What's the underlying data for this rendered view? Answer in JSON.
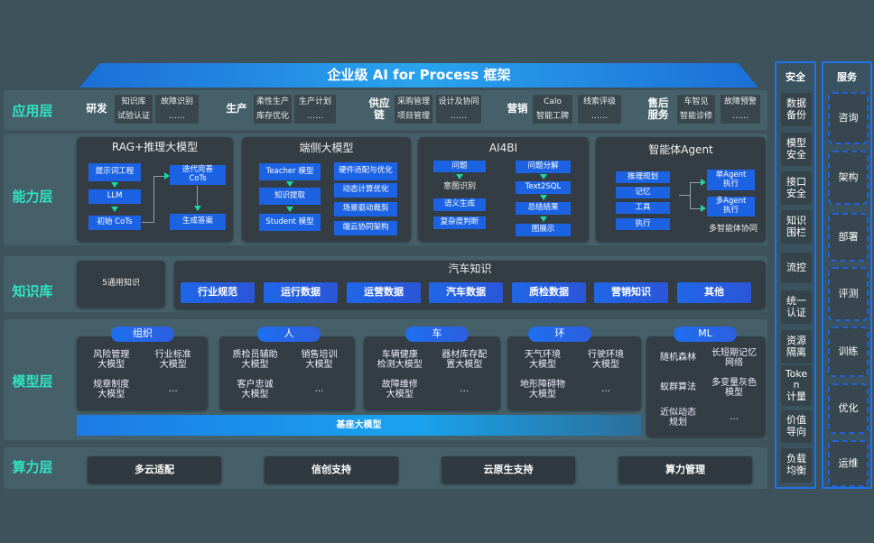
{
  "title": "企业级 AI for Process 框架",
  "layers": {
    "app": "应用层",
    "capability": "能力层",
    "knowledge": "知识库",
    "model": "模型层",
    "compute": "算力层"
  },
  "app": {
    "groups": [
      {
        "name": "研发",
        "items": [
          "知识库",
          "试验认证",
          "故障识别",
          "……"
        ]
      },
      {
        "name": "生产",
        "items": [
          "柔性生产",
          "库存优化",
          "生产计划",
          "……"
        ]
      },
      {
        "name": "供应链",
        "items": [
          "采购管理",
          "项目管理",
          "设计及协同",
          "……"
        ]
      },
      {
        "name": "营销",
        "items": [
          "Calo",
          "智能工牌",
          "线索评级",
          "……"
        ]
      },
      {
        "name": "售后服务",
        "items": [
          "车智见",
          "智能诊修",
          "故障预警",
          "……"
        ]
      }
    ]
  },
  "capability": {
    "rag": {
      "title": "RAG+推理大模型",
      "items": [
        "提示词工程",
        "LLM",
        "初始 CoTs",
        "迭代完善\nCoTs",
        "生成答案"
      ]
    },
    "edge": {
      "title": "端侧大模型",
      "items": [
        "Teacher 模型",
        "知识提取",
        "Student 模型",
        "硬件适配与优化",
        "动态计算优化",
        "场景驱动裁剪",
        "端云协同架构"
      ]
    },
    "ai4bi": {
      "title": "AI4BI",
      "items": [
        "问题",
        "意图识别",
        "语义生成",
        "复杂度判断",
        "问题分解",
        "Text2SQL",
        "总结结果",
        "图展示"
      ]
    },
    "agent": {
      "title": "智能体Agent",
      "items": [
        "推理规划",
        "记忆",
        "工具",
        "执行",
        "单Agent\n执行",
        "多Agent\n执行"
      ],
      "caption": "多智能体协同"
    }
  },
  "knowledge": {
    "general": "5通用知识",
    "auto_title": "汽车知识",
    "items": [
      "行业规范",
      "运行数据",
      "运营数据",
      "汽车数据",
      "质检数据",
      "营销知识",
      "其他"
    ]
  },
  "model": {
    "groups": [
      {
        "name": "组织",
        "items": [
          "风险管理\n大模型",
          "行业标准\n大模型",
          "规章制度\n大模型",
          "…"
        ]
      },
      {
        "name": "人",
        "items": [
          "质检员辅助\n大模型",
          "销售培训\n大模型",
          "客户忠诚\n大模型",
          "…"
        ]
      },
      {
        "name": "车",
        "items": [
          "车辆健康\n检测大模型",
          "器材库存配\n置大模型",
          "故障维修\n大模型",
          "…"
        ]
      },
      {
        "name": "环",
        "items": [
          "天气环境\n大模型",
          "行驶环境\n大模型",
          "地形障碍物\n大模型",
          "…"
        ]
      },
      {
        "name": "ML",
        "items": [
          "随机森林",
          "长短期记忆\n网络",
          "蚁群算法",
          "多变量灰色\n模型",
          "近似动态\n规划",
          "…"
        ]
      }
    ],
    "base": "基座大模型"
  },
  "compute": {
    "items": [
      "多云适配",
      "信创支持",
      "云原生支持",
      "算力管理"
    ]
  },
  "security": {
    "title": "安全",
    "items": [
      "数据\n备份",
      "模型\n安全",
      "接口\n安全",
      "知识\n围栏",
      "流控",
      "统一\n认证",
      "资源\n隔离",
      "Toke\nn\n计量",
      "价值\n导向",
      "负载\n均衡"
    ]
  },
  "service": {
    "title": "服务",
    "items": [
      "咨询",
      "架构",
      "部署",
      "评测",
      "训练",
      "优化",
      "运维"
    ]
  },
  "colors": {
    "background": "#3d525b",
    "label": "#2fe3c3",
    "accent_blue": "#1c63e4",
    "arrow": "#1ad6a0"
  }
}
